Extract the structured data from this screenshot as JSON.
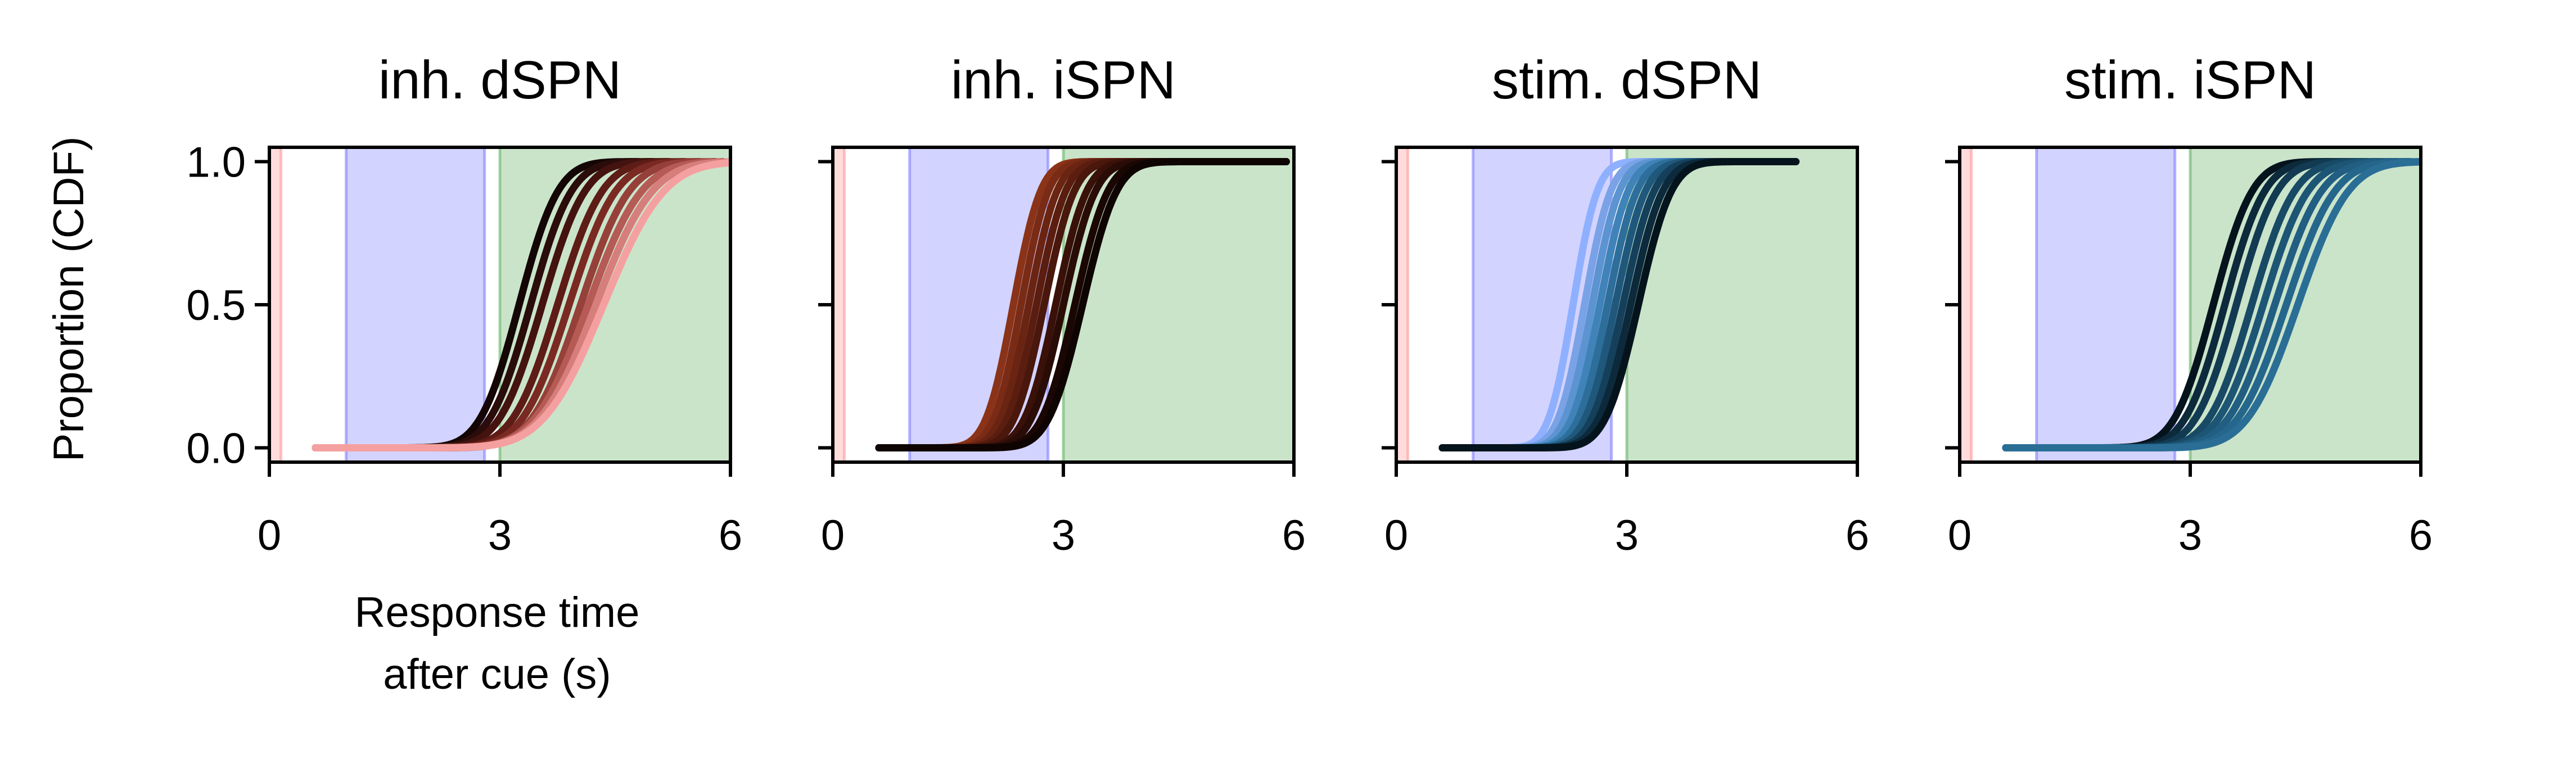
{
  "figure": {
    "ylabel": "Proportion (CDF)",
    "xlabel_lines": [
      "Response time",
      "after cue (s)"
    ],
    "xlim": [
      0,
      6
    ],
    "ylim": [
      -0.05,
      1.05
    ],
    "xticks": [
      0,
      3,
      6
    ],
    "yticks": [
      0.0,
      0.5,
      1.0
    ],
    "ytick_labels": [
      "0.0",
      "0.5",
      "1.0"
    ],
    "shaded_bands": [
      {
        "name": "cue",
        "start": 0.0,
        "end": 0.15,
        "color": "#ff9a9a"
      },
      {
        "name": "delay",
        "start": 1.0,
        "end": 2.8,
        "color": "#8080ff"
      },
      {
        "name": "response",
        "start": 3.0,
        "end": 6.0,
        "color": "#66b266"
      }
    ]
  },
  "chart_data": [
    {
      "type": "line",
      "title": "inh. dSPN",
      "xlim": [
        0,
        6
      ],
      "ylim": [
        -0.05,
        1.05
      ],
      "series": [
        {
          "color": "#140605",
          "x0": 0.6,
          "mid": 3.25,
          "sd": 0.4,
          "xmax": 4.8
        },
        {
          "color": "#2a0c0a",
          "x0": 0.6,
          "mid": 3.4,
          "sd": 0.42,
          "xmax": 5.0
        },
        {
          "color": "#44130f",
          "x0": 0.6,
          "mid": 3.55,
          "sd": 0.44,
          "xmax": 5.2
        },
        {
          "color": "#5e1c16",
          "x0": 0.6,
          "mid": 3.75,
          "sd": 0.46,
          "xmax": 5.4
        },
        {
          "color": "#7a2a22",
          "x0": 0.6,
          "mid": 3.9,
          "sd": 0.48,
          "xmax": 5.6
        },
        {
          "color": "#96403a",
          "x0": 0.6,
          "mid": 4.05,
          "sd": 0.5,
          "xmax": 5.8
        },
        {
          "color": "#b55a55",
          "x0": 0.6,
          "mid": 4.15,
          "sd": 0.55,
          "xmax": 5.9
        },
        {
          "color": "#d67e7b",
          "x0": 0.6,
          "mid": 4.25,
          "sd": 0.58,
          "xmax": 6.0
        },
        {
          "color": "#f5a0a0",
          "x0": 0.6,
          "mid": 4.35,
          "sd": 0.62,
          "xmax": 6.0
        }
      ]
    },
    {
      "type": "line",
      "title": "inh. iSPN",
      "xlim": [
        0,
        6
      ],
      "ylim": [
        -0.05,
        1.05
      ],
      "series": [
        {
          "color": "#8a3318",
          "x0": 0.6,
          "mid": 2.35,
          "sd": 0.28,
          "xmax": 5.9
        },
        {
          "color": "#7a2b15",
          "x0": 0.6,
          "mid": 2.45,
          "sd": 0.28,
          "xmax": 5.9
        },
        {
          "color": "#6a2412",
          "x0": 0.6,
          "mid": 2.55,
          "sd": 0.29,
          "xmax": 5.9
        },
        {
          "color": "#5a1d0f",
          "x0": 0.6,
          "mid": 2.65,
          "sd": 0.3,
          "xmax": 5.9
        },
        {
          "color": "#4a170c",
          "x0": 0.6,
          "mid": 2.75,
          "sd": 0.31,
          "xmax": 5.9
        },
        {
          "color": "#3a1109",
          "x0": 0.6,
          "mid": 2.9,
          "sd": 0.32,
          "xmax": 5.9
        },
        {
          "color": "#2a0c06",
          "x0": 0.6,
          "mid": 3.0,
          "sd": 0.33,
          "xmax": 5.9
        },
        {
          "color": "#1a0704",
          "x0": 0.6,
          "mid": 3.15,
          "sd": 0.34,
          "xmax": 5.9
        },
        {
          "color": "#0e0402",
          "x0": 0.6,
          "mid": 3.25,
          "sd": 0.35,
          "xmax": 5.9
        }
      ]
    },
    {
      "type": "line",
      "title": "stim. dSPN",
      "xlim": [
        0,
        6
      ],
      "ylim": [
        -0.05,
        1.05
      ],
      "series": [
        {
          "color": "#8fb0ff",
          "x0": 0.6,
          "mid": 2.3,
          "sd": 0.25,
          "xmax": 4.6
        },
        {
          "color": "#7aa2e6",
          "x0": 0.6,
          "mid": 2.45,
          "sd": 0.27,
          "xmax": 4.7
        },
        {
          "color": "#5b94d0",
          "x0": 0.6,
          "mid": 2.55,
          "sd": 0.28,
          "xmax": 4.8
        },
        {
          "color": "#3f83b8",
          "x0": 0.6,
          "mid": 2.65,
          "sd": 0.29,
          "xmax": 4.9
        },
        {
          "color": "#2d6e9a",
          "x0": 0.6,
          "mid": 2.75,
          "sd": 0.3,
          "xmax": 5.0
        },
        {
          "color": "#20587c",
          "x0": 0.6,
          "mid": 2.85,
          "sd": 0.31,
          "xmax": 5.1
        },
        {
          "color": "#15405b",
          "x0": 0.6,
          "mid": 2.95,
          "sd": 0.32,
          "xmax": 5.2
        },
        {
          "color": "#0c2a3b",
          "x0": 0.6,
          "mid": 3.05,
          "sd": 0.33,
          "xmax": 5.2
        },
        {
          "color": "#05141c",
          "x0": 0.6,
          "mid": 3.15,
          "sd": 0.34,
          "xmax": 5.2
        }
      ]
    },
    {
      "type": "line",
      "title": "stim. iSPN",
      "xlim": [
        0,
        6
      ],
      "ylim": [
        -0.05,
        1.05
      ],
      "series": [
        {
          "color": "#05141c",
          "x0": 0.6,
          "mid": 3.3,
          "sd": 0.4,
          "xmax": 4.9
        },
        {
          "color": "#0c2a3b",
          "x0": 0.6,
          "mid": 3.45,
          "sd": 0.41,
          "xmax": 5.1
        },
        {
          "color": "#123a52",
          "x0": 0.6,
          "mid": 3.6,
          "sd": 0.42,
          "xmax": 5.3
        },
        {
          "color": "#184a66",
          "x0": 0.6,
          "mid": 3.8,
          "sd": 0.44,
          "xmax": 5.5
        },
        {
          "color": "#1d5575",
          "x0": 0.6,
          "mid": 3.95,
          "sd": 0.46,
          "xmax": 5.7
        },
        {
          "color": "#215e82",
          "x0": 0.6,
          "mid": 4.1,
          "sd": 0.48,
          "xmax": 5.85
        },
        {
          "color": "#25668c",
          "x0": 0.6,
          "mid": 4.25,
          "sd": 0.5,
          "xmax": 6.0
        },
        {
          "color": "#2a6e96",
          "x0": 0.6,
          "mid": 4.4,
          "sd": 0.52,
          "xmax": 6.0
        }
      ]
    }
  ]
}
